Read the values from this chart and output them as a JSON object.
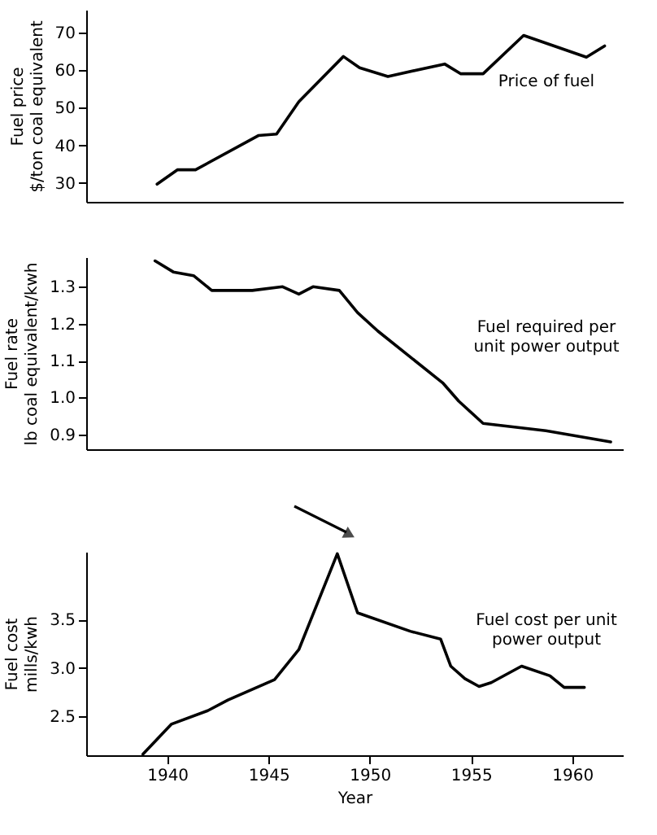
{
  "chart_data": [
    {
      "type": "line",
      "ylabel": "Fuel price\n$/ton coal equivalent",
      "xlim": [
        1936,
        1962.5
      ],
      "ylim": [
        25,
        76
      ],
      "yticks": [
        30,
        40,
        50,
        60,
        70
      ],
      "tick_labels": "y",
      "grid": false,
      "marker": "none",
      "line_style": "solid",
      "annotations": [
        "Price of fuel"
      ],
      "x": [
        1939.5,
        1940.5,
        1941.4,
        1944.5,
        1945.4,
        1946.5,
        1948.7,
        1949.5,
        1950.9,
        1953.7,
        1954.5,
        1955.6,
        1957.6,
        1960.7,
        1961.6
      ],
      "series": [
        {
          "color": "#000000",
          "values": [
            29.7,
            33.5,
            33.5,
            42.6,
            43.0,
            51.6,
            63.6,
            60.6,
            58.3,
            61.6,
            59.0,
            59.0,
            69.2,
            63.4,
            66.4
          ]
        }
      ]
    },
    {
      "type": "line",
      "ylabel": "Fuel rate\nlb coal equivalent/kwh",
      "xlim": [
        1936,
        1962.5
      ],
      "ylim": [
        0.86,
        1.38
      ],
      "yticks": [
        {
          "value": 0.9,
          "label": "0.9"
        },
        {
          "value": 1.0,
          "label": "1.0"
        },
        {
          "value": 1.1,
          "label": "1.1"
        },
        {
          "value": 1.2,
          "label": "1.2"
        },
        {
          "value": 1.3,
          "label": "1.3"
        }
      ],
      "tick_labels": "y",
      "grid": false,
      "marker": "none",
      "line_style": "solid",
      "annotations": [
        "Fuel required per\nunit power output"
      ],
      "x": [
        1939.4,
        1940.3,
        1941.3,
        1942.2,
        1944.2,
        1945.7,
        1946.5,
        1947.2,
        1948.5,
        1949.4,
        1950.4,
        1953.6,
        1954.4,
        1955.6,
        1958.7,
        1961.9
      ],
      "series": [
        {
          "color": "#000000",
          "values": [
            1.37,
            1.34,
            1.33,
            1.29,
            1.29,
            1.3,
            1.28,
            1.3,
            1.29,
            1.23,
            1.18,
            1.04,
            0.99,
            0.93,
            0.91,
            0.88
          ]
        }
      ]
    },
    {
      "type": "line",
      "ylabel": "Fuel cost\nmills/kwh",
      "xlabel": "Year",
      "xlim": [
        1936,
        1962.5
      ],
      "xticks": [
        1940,
        1945,
        1950,
        1955,
        1960
      ],
      "ylim": [
        2.1,
        4.2
      ],
      "yticks": [
        {
          "value": 2.5,
          "label": "2.5"
        },
        {
          "value": 3.0,
          "label": "3.0"
        },
        {
          "value": 3.5,
          "label": "3.5"
        }
      ],
      "grid": false,
      "marker": "none",
      "line_style": "solid",
      "annotations": [
        "Fuel cost per unit\npower output"
      ],
      "x": [
        1938.8,
        1940.2,
        1942.0,
        1943.0,
        1945.3,
        1946.5,
        1948.4,
        1949.4,
        1952.0,
        1953.5,
        1954.0,
        1954.7,
        1955.4,
        1956.0,
        1957.5,
        1958.9,
        1959.6,
        1960.6
      ],
      "series": [
        {
          "color": "#000000",
          "values": [
            2.11,
            2.42,
            2.56,
            2.67,
            2.88,
            3.19,
            4.18,
            3.57,
            3.38,
            3.3,
            3.02,
            2.89,
            2.81,
            2.85,
            3.02,
            2.92,
            2.8,
            2.8
          ]
        }
      ]
    }
  ]
}
